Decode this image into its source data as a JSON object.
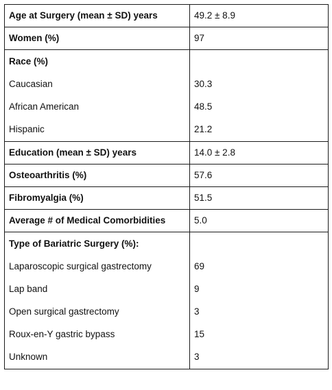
{
  "table": {
    "rows": [
      {
        "label": "Age at Surgery (mean ± SD) years",
        "value": "49.2 ± 8.9",
        "bold": true
      },
      {
        "label": "Women (%)",
        "value": "97",
        "bold": true
      }
    ],
    "race": {
      "heading": "Race (%)",
      "items": [
        {
          "label": "Caucasian",
          "value": "30.3"
        },
        {
          "label": "African American",
          "value": "48.5"
        },
        {
          "label": "Hispanic",
          "value": "21.2"
        }
      ]
    },
    "education": {
      "label": "Education (mean ± SD) years",
      "value": "14.0 ± 2.8"
    },
    "osteoarthritis": {
      "label": "Osteoarthritis (%)",
      "value": "57.6"
    },
    "fibromyalgia": {
      "label": "Fibromyalgia (%)",
      "value": "51.5"
    },
    "comorbidities": {
      "label": "Average # of Medical Comorbidities",
      "value": "5.0"
    },
    "surgery": {
      "heading": "Type of Bariatric Surgery (%):",
      "items": [
        {
          "label": "Laparoscopic surgical gastrectomy",
          "value": "69"
        },
        {
          "label": "Lap band",
          "value": "9"
        },
        {
          "label": "Open surgical gastrectomy",
          "value": "3"
        },
        {
          "label": "Roux-en-Y gastric bypass",
          "value": "15"
        },
        {
          "label": "Unknown",
          "value": "3"
        }
      ]
    }
  }
}
